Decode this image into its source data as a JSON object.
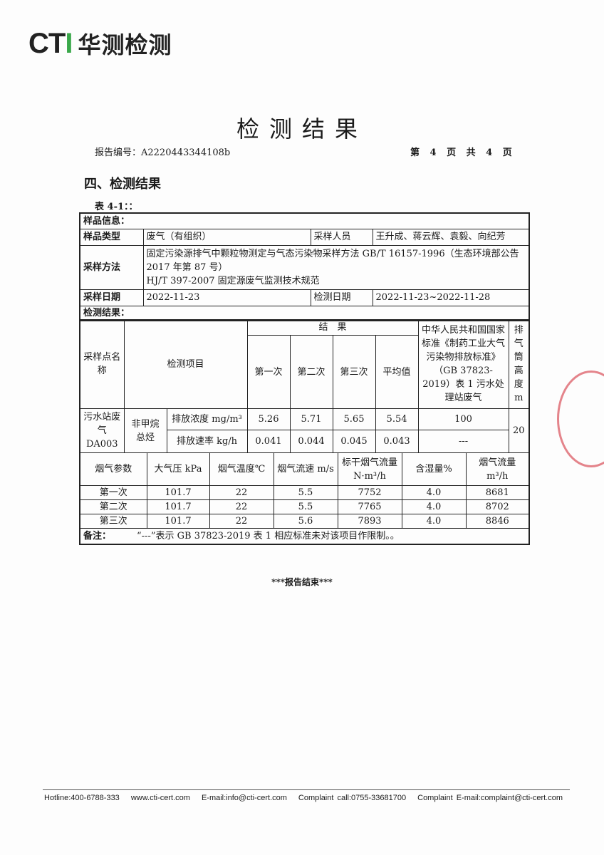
{
  "logo": {
    "text": "CTI 华测检测",
    "brand_green": "#3aa84a"
  },
  "title": "检测结果",
  "report_no": "报告编号：A2220443344108b",
  "page_info": "第 4 页 共 4 页",
  "section": "四、检测结果",
  "table_label": "表 4-1：：",
  "sample_info": {
    "header": "样品信息：",
    "type_label": "样品类型",
    "type_value": "废气（有组织）",
    "sampler_label": "采样人员",
    "sampler_value": "王升成、蒋云辉、袁毅、向纪芳",
    "method_label": "采样方法",
    "method_lines": [
      "固定污染源排气中颗粒物测定与气态污染物采样方法 GB/T 16157-1996（生态环境部公告 2017 年第 87 号）",
      "HJ/T 397-2007 固定源废气监测技术规范"
    ],
    "sample_date_label": "采样日期",
    "sample_date": "2022-11-23",
    "test_date_label": "检测日期",
    "test_date": "2022-11-23~2022-11-28"
  },
  "results": {
    "header": "检测结果：",
    "col_site": "采样点名称",
    "col_item": "检测项目",
    "col_result": "结　果",
    "runs": [
      "第一次",
      "第二次",
      "第三次",
      "平均值"
    ],
    "col_standard": "中华人民共和国国家标准《制药工业大气污染物排放标准》（GB 37823-2019）表 1 污水处理站废气",
    "col_height": "排气筒高度m",
    "site": "污水站废气DA003",
    "pollutant": "非甲烷总烃",
    "rows": [
      {
        "metric": "排放浓度 mg/m³",
        "values": [
          "5.26",
          "5.71",
          "5.65",
          "5.54"
        ],
        "limit": "100"
      },
      {
        "metric": "排放速率 kg/h",
        "values": [
          "0.041",
          "0.044",
          "0.045",
          "0.043"
        ],
        "limit": "---"
      }
    ],
    "height": "20"
  },
  "flue": {
    "headers": [
      "烟气参数",
      "大气压 kPa",
      "烟气温度℃",
      "烟气流速 m/s",
      "标干烟气流量 N·m³/h",
      "含湿量%",
      "烟气流量 m³/h"
    ],
    "rows": [
      [
        "第一次",
        "101.7",
        "22",
        "5.5",
        "7752",
        "4.0",
        "8681"
      ],
      [
        "第二次",
        "101.7",
        "22",
        "5.5",
        "7765",
        "4.0",
        "8702"
      ],
      [
        "第三次",
        "101.7",
        "22",
        "5.6",
        "7893",
        "4.0",
        "8846"
      ]
    ]
  },
  "remark_label": "备注：",
  "remark": "“---”表示 GB 37823-2019 表 1 相应标准未对该项目作限制。。",
  "end": "***报告结束***",
  "footer": [
    "Hotline:400-6788-333",
    "www.cti-cert.com",
    "E-mail:info@cti-cert.com",
    "Complaint call:0755-33681700",
    "Complaint E-mail:complaint@cti-cert.com"
  ]
}
